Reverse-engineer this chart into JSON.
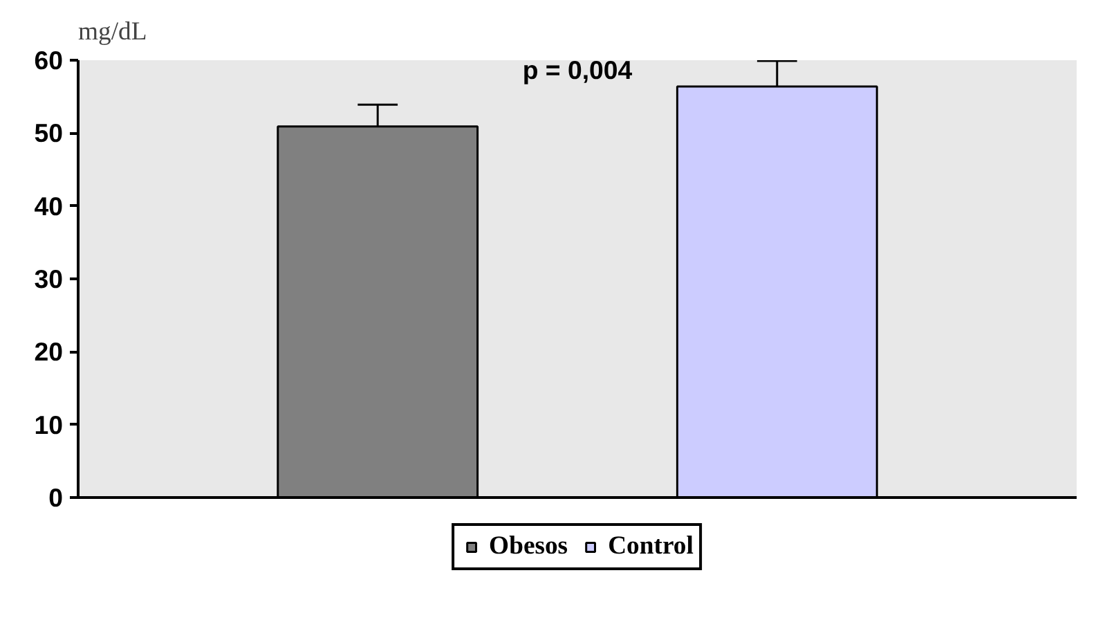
{
  "chart_data": {
    "type": "bar",
    "ylabel": "mg/dL",
    "categories": [
      null
    ],
    "series": [
      {
        "name": "Obesos",
        "color": "#808080",
        "values": [
          50.9
        ],
        "errors": [
          [
            50.9,
            53.9
          ]
        ]
      },
      {
        "name": "Control",
        "color": "#ccccff",
        "values": [
          56.4
        ],
        "errors": [
          [
            56.4,
            59.9
          ]
        ]
      }
    ],
    "ylim": [
      0,
      60
    ],
    "yticks": [
      0,
      10,
      20,
      30,
      40,
      50,
      60
    ],
    "legend": "bottom",
    "annotations": [
      "p = 0,004"
    ]
  }
}
